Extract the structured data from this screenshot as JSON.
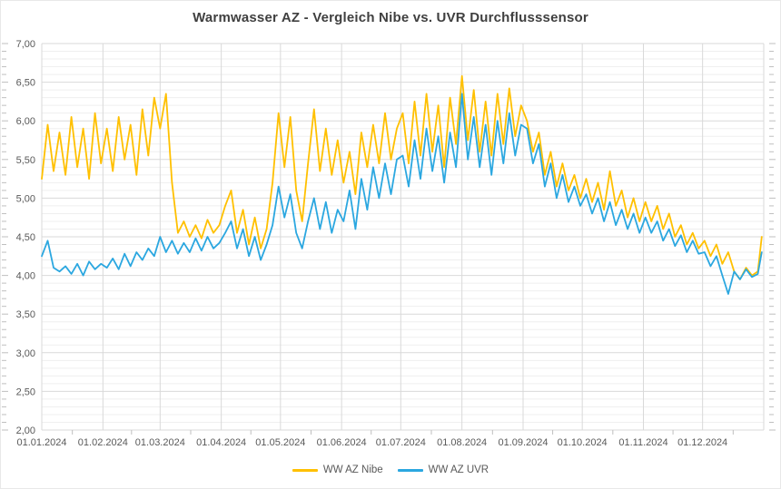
{
  "title": "Warmwasser AZ - Vergleich Nibe vs. UVR Durchflusssensor",
  "legend": {
    "nibe_label": "WW AZ Nibe",
    "uvr_label": "WW AZ UVR"
  },
  "colors": {
    "nibe_line": "#FFC000",
    "uvr_line": "#2BA7E0",
    "grid_major": "#D9D9D9",
    "grid_minor": "#EFEFEF",
    "tick": "#BFBFBF",
    "axis_text": "#595959",
    "title_text": "#3F3F3F"
  },
  "y_axis": {
    "tick_labels": [
      "7,00",
      "6,50",
      "6,00",
      "5,50",
      "5,00",
      "4,50",
      "4,00",
      "3,50",
      "3,00",
      "2,50",
      "2,00"
    ]
  },
  "x_axis": {
    "tick_labels": [
      "01.01.2024",
      "01.02.2024",
      "01.03.2024",
      "01.04.2024",
      "01.05.2024",
      "01.06.2024",
      "01.07.2024",
      "01.08.2024",
      "01.09.2024",
      "01.10.2024",
      "01.11.2024",
      "01.12.2024"
    ],
    "month_start_days": [
      1,
      32,
      61,
      92,
      122,
      153,
      183,
      214,
      245,
      275,
      306,
      336
    ]
  },
  "chart_data": {
    "type": "line",
    "title": "Warmwasser AZ - Vergleich Nibe vs. UVR Durchflusssensor",
    "xlabel": "",
    "ylabel": "",
    "ylim": [
      2.0,
      7.0
    ],
    "y_major_step": 0.5,
    "y_minor_step": 0.1,
    "x_unit": "day_of_year_2024",
    "x_range_days": [
      1,
      366
    ],
    "grid": "on",
    "legend_position": "bottom",
    "x": [
      1,
      4,
      7,
      10,
      13,
      16,
      19,
      22,
      25,
      28,
      31,
      34,
      37,
      40,
      43,
      46,
      49,
      52,
      55,
      58,
      61,
      64,
      67,
      70,
      73,
      76,
      79,
      82,
      85,
      88,
      91,
      94,
      97,
      100,
      103,
      106,
      109,
      112,
      115,
      118,
      121,
      124,
      127,
      130,
      133,
      136,
      139,
      142,
      145,
      148,
      151,
      154,
      157,
      160,
      163,
      166,
      169,
      172,
      175,
      178,
      181,
      184,
      187,
      190,
      193,
      196,
      199,
      202,
      205,
      208,
      211,
      214,
      217,
      220,
      223,
      226,
      229,
      232,
      235,
      238,
      241,
      244,
      247,
      250,
      253,
      256,
      259,
      262,
      265,
      268,
      271,
      274,
      277,
      280,
      283,
      286,
      289,
      292,
      295,
      298,
      301,
      304,
      307,
      310,
      313,
      316,
      319,
      322,
      325,
      328,
      331,
      334,
      337,
      340,
      343,
      346,
      349,
      352,
      355,
      358,
      361,
      364,
      366
    ],
    "series": [
      {
        "name": "WW AZ Nibe",
        "color": "#FFC000",
        "values": [
          5.25,
          5.95,
          5.35,
          5.85,
          5.3,
          6.05,
          5.4,
          5.9,
          5.25,
          6.1,
          5.45,
          5.9,
          5.35,
          6.05,
          5.5,
          5.95,
          5.3,
          6.15,
          5.55,
          6.3,
          5.9,
          6.35,
          5.2,
          4.55,
          4.7,
          4.5,
          4.65,
          4.48,
          4.72,
          4.55,
          4.65,
          4.9,
          5.1,
          4.55,
          4.85,
          4.4,
          4.75,
          4.35,
          4.6,
          5.2,
          6.1,
          5.4,
          6.05,
          5.1,
          4.7,
          5.45,
          6.15,
          5.35,
          5.9,
          5.3,
          5.75,
          5.2,
          5.6,
          5.05,
          5.85,
          5.4,
          5.95,
          5.45,
          6.1,
          5.5,
          5.9,
          6.1,
          5.45,
          6.25,
          5.55,
          6.35,
          5.6,
          6.2,
          5.4,
          6.3,
          5.7,
          6.58,
          5.75,
          6.4,
          5.6,
          6.25,
          5.55,
          6.35,
          5.7,
          6.42,
          5.8,
          6.2,
          6.0,
          5.6,
          5.85,
          5.3,
          5.6,
          5.15,
          5.45,
          5.1,
          5.3,
          5.0,
          5.25,
          4.95,
          5.2,
          4.85,
          5.35,
          4.9,
          5.1,
          4.75,
          5.0,
          4.7,
          4.95,
          4.7,
          4.9,
          4.6,
          4.8,
          4.5,
          4.65,
          4.4,
          4.55,
          4.35,
          4.45,
          4.25,
          4.4,
          4.15,
          4.3,
          4.05,
          3.95,
          4.1,
          4.0,
          4.05,
          4.5
        ]
      },
      {
        "name": "WW AZ UVR",
        "color": "#2BA7E0",
        "values": [
          4.25,
          4.45,
          4.1,
          4.05,
          4.12,
          4.02,
          4.15,
          4.0,
          4.18,
          4.08,
          4.15,
          4.1,
          4.22,
          4.08,
          4.28,
          4.12,
          4.3,
          4.2,
          4.35,
          4.25,
          4.5,
          4.3,
          4.45,
          4.28,
          4.42,
          4.3,
          4.48,
          4.32,
          4.5,
          4.35,
          4.42,
          4.55,
          4.7,
          4.35,
          4.6,
          4.25,
          4.5,
          4.2,
          4.4,
          4.65,
          5.15,
          4.75,
          5.05,
          4.55,
          4.35,
          4.7,
          5.0,
          4.6,
          4.95,
          4.55,
          4.85,
          4.7,
          5.1,
          4.6,
          5.25,
          4.85,
          5.4,
          5.0,
          5.45,
          5.05,
          5.5,
          5.55,
          5.15,
          5.75,
          5.25,
          5.9,
          5.35,
          5.8,
          5.2,
          5.85,
          5.4,
          6.35,
          5.5,
          6.05,
          5.4,
          5.95,
          5.3,
          6.0,
          5.45,
          6.1,
          5.55,
          5.95,
          5.9,
          5.45,
          5.7,
          5.15,
          5.45,
          5.0,
          5.3,
          4.95,
          5.15,
          4.9,
          5.05,
          4.8,
          5.0,
          4.7,
          4.95,
          4.65,
          4.85,
          4.6,
          4.8,
          4.55,
          4.75,
          4.55,
          4.7,
          4.45,
          4.6,
          4.38,
          4.52,
          4.3,
          4.45,
          4.28,
          4.3,
          4.12,
          4.25,
          4.0,
          3.76,
          4.05,
          3.95,
          4.08,
          3.98,
          4.02,
          4.3
        ]
      }
    ]
  }
}
